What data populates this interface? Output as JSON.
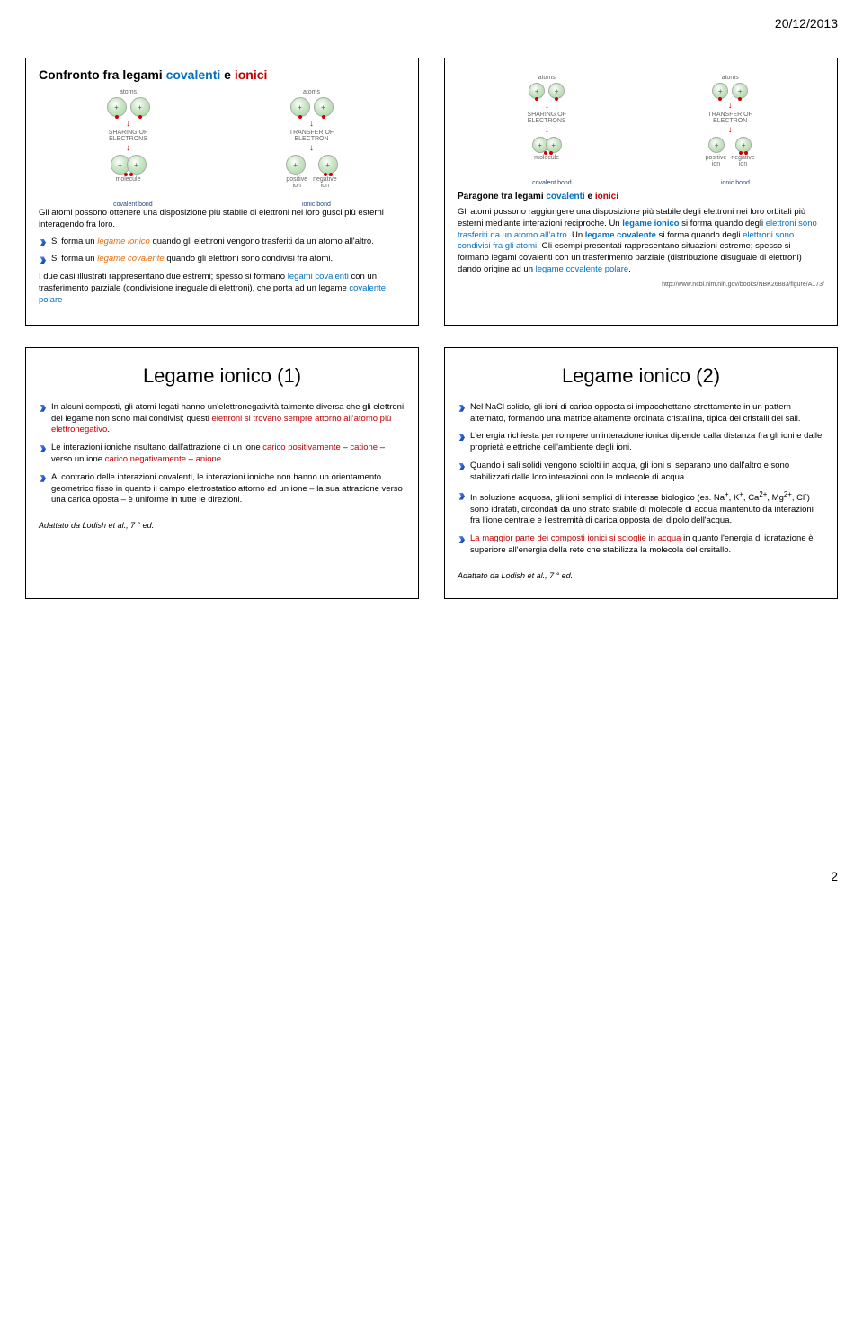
{
  "header_date": "20/12/2013",
  "page_number": "2",
  "slide1": {
    "title_prefix": "Confronto fra legami ",
    "title_cov": "covalenti",
    "title_e": " e ",
    "title_ion": "ionici",
    "diag": {
      "atoms": "atoms",
      "sharing": "SHARING OF\nELECTRONS",
      "transfer": "TRANSFER OF\nELECTRON",
      "molecule": "molecule",
      "posion": "positive\nion",
      "negion": "negative\nion",
      "covbond": "covalent bond",
      "ionbond": "ionic bond"
    },
    "p1": "Gli atomi possono ottenere una disposizione più stabile di elettroni nei loro gusci più esterni interagendo fra loro.",
    "b1_pre": "Si forma un ",
    "b1_term": "legame ionico",
    "b1_post": " quando gli elettroni vengono trasferiti da un atomo all'altro.",
    "b2_pre": "Si forma un ",
    "b2_term": "legame covalente",
    "b2_post": " quando gli elettroni sono condivisi fra atomi.",
    "p2_pre": "I due casi illustrati rappresentano due estremi; spesso si formano ",
    "p2_term1": "legami covalenti",
    "p2_mid": " con un trasferimento parziale (condivisione ineguale di elettroni), che porta ad un legame ",
    "p2_term2": "covalente polare"
  },
  "slide2": {
    "subtitle_pre": "Paragone tra legami ",
    "subtitle_cov": "covalenti",
    "subtitle_e": " e ",
    "subtitle_ion": "ionici",
    "body_1": "Gli atomi possono raggiungere una disposizione più stabile degli elettroni nei loro orbitali più esterni mediante interazioni reciproche. Un ",
    "legame_ionico": "legame ionico",
    "body_2": " si forma quando degli ",
    "elettroni_trasf": "elettroni sono trasferiti da un atomo all'altro",
    "body_3": ". Un ",
    "legame_cov": "legame covalente",
    "body_4": " si forma quando degli ",
    "elettroni_cond": "elettroni sono condivisi fra gli atomi",
    "body_5": ". Gli esempi presentati rappresentano situazioni estreme; spesso si formano legami covalenti con un trasferimento parziale (distribuzione disuguale di elettroni) dando origine ad un ",
    "leg_cov_pol": "legame covalente polare",
    "body_6": ".",
    "url": "http://www.ncbi.nlm.nih.gov/books/NBK26883/figure/A173/"
  },
  "slide3": {
    "title": "Legame ionico (1)",
    "b1_pre": "In alcuni composti, gli atomi legati hanno un'elettronegatività talmente diversa che gli elettroni del legame non sono mai condivisi; questi ",
    "b1_term": "elettroni si trovano sempre attorno all'atomo più elettronegativo",
    "b1_post": ".",
    "b2_pre": "Le interazioni ioniche risultano dall'attrazione di un ione ",
    "b2_t1": "carico positivamente",
    "b2_dash1": " – ",
    "b2_t2": "catione",
    "b2_mid": " – verso un ione ",
    "b2_t3": "carico negativamente",
    "b2_dash2": " – ",
    "b2_t4": "anione",
    "b2_post": ".",
    "b3": "Al contrario delle interazioni covalenti, le interazioni ioniche non hanno un orientamento geometrico fisso in quanto il campo elettrostatico attorno ad un ione – la sua attrazione verso una carica oposta – è uniforme in tutte le direzioni.",
    "cite": "Adattato da Lodish et al., 7 ° ed."
  },
  "slide4": {
    "title": "Legame ionico (2)",
    "b1": "Nel NaCl solido, gli ioni di carica opposta si impacchettano strettamente in un pattern alternato, formando una matrice altamente ordinata cristallina, tipica dei cristalli dei sali.",
    "b2": "L'energia richiesta per rompere un'interazione ionica dipende dalla distanza fra gli ioni e dalle proprietà elettriche dell'ambiente degli ioni.",
    "b3": "Quando i sali solidi vengono sciolti in acqua, gli ioni si separano uno dall'altro e sono stabilizzati dalle loro interazioni con le molecole di acqua.",
    "b4_pre": "In soluzione acquosa, gli ioni semplici di interesse biologico (es. Na",
    "b4_sup1": "+",
    "b4_mid1": ", K",
    "b4_sup2": "+",
    "b4_mid2": ", Ca",
    "b4_sup3": "2+",
    "b4_mid3": ", Mg",
    "b4_sup4": "2+",
    "b4_mid4": ", Cl",
    "b4_sup5": "-",
    "b4_post": ") sono idratati, circondati da uno strato stabile di molecole di acqua mantenuto da interazioni fra l'ione centrale e l'estremità di carica opposta del dipolo dell'acqua.",
    "b5_term": "La maggior parte dei composti ionici si scioglie in acqua",
    "b5_post": " in quanto l'energia di idratazione è superiore all'energia della rete che stabilizza la molecola del crsitallo.",
    "cite": "Adattato da Lodish et al., 7 ° ed."
  }
}
